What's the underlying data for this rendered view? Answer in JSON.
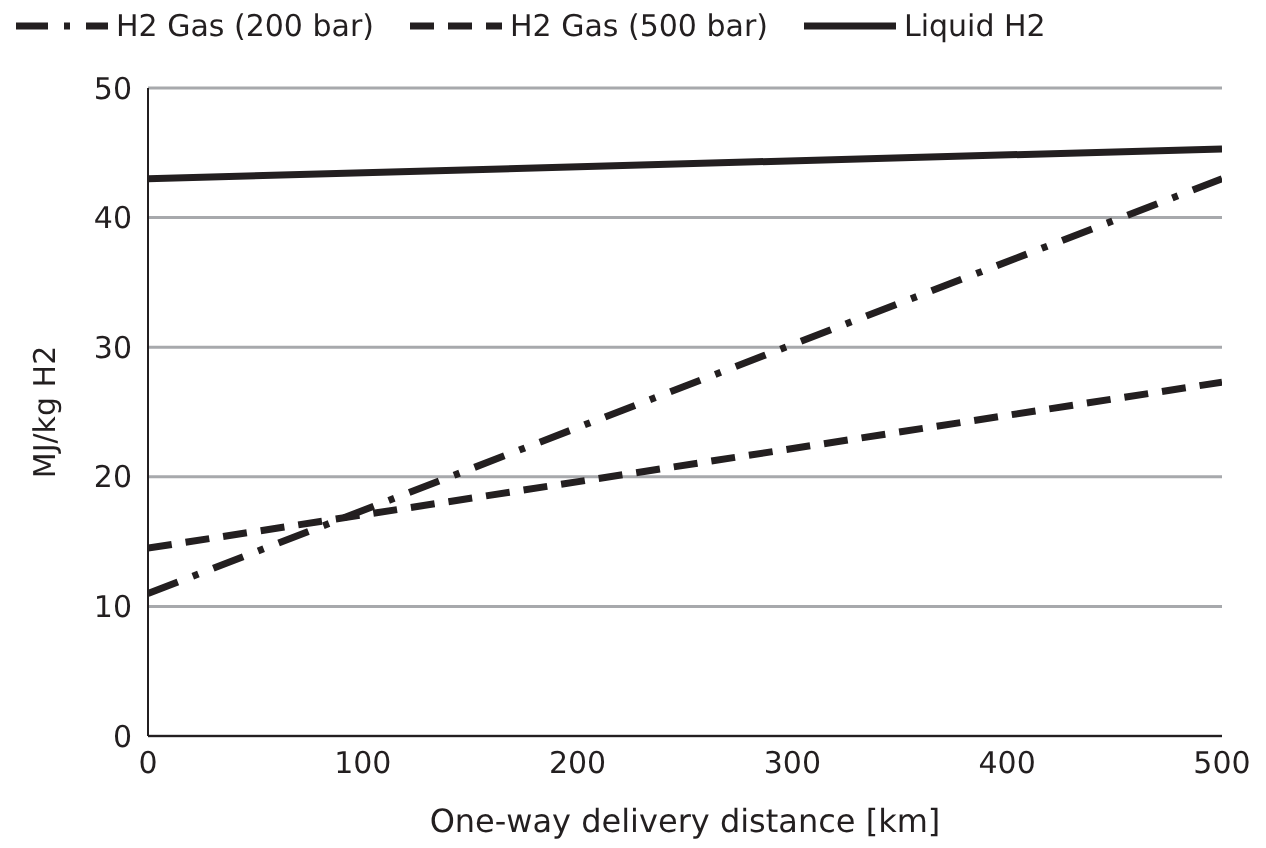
{
  "chart_data": {
    "type": "line",
    "xlabel": "One-way delivery distance [km]",
    "ylabel": "MJ/kg H2",
    "x": [
      0,
      500
    ],
    "series": [
      {
        "name": "H2 Gas (200 bar)",
        "color": "#231f20",
        "values": [
          11,
          43
        ],
        "line_style": "dashdot"
      },
      {
        "name": "H2 Gas (500 bar)",
        "color": "#231f20",
        "values": [
          14.5,
          27.3
        ],
        "line_style": "dashed"
      },
      {
        "name": "Liquid H2",
        "color": "#231f20",
        "values": [
          43,
          45.3
        ],
        "line_style": "solid"
      }
    ],
    "xlim": [
      0,
      500
    ],
    "xticks": [
      0,
      100,
      200,
      300,
      400,
      500
    ],
    "ylim": [
      0,
      50
    ],
    "yticks": [
      0,
      10,
      20,
      30,
      40,
      50
    ],
    "grid": "y",
    "legend": "top",
    "marker": "none"
  }
}
